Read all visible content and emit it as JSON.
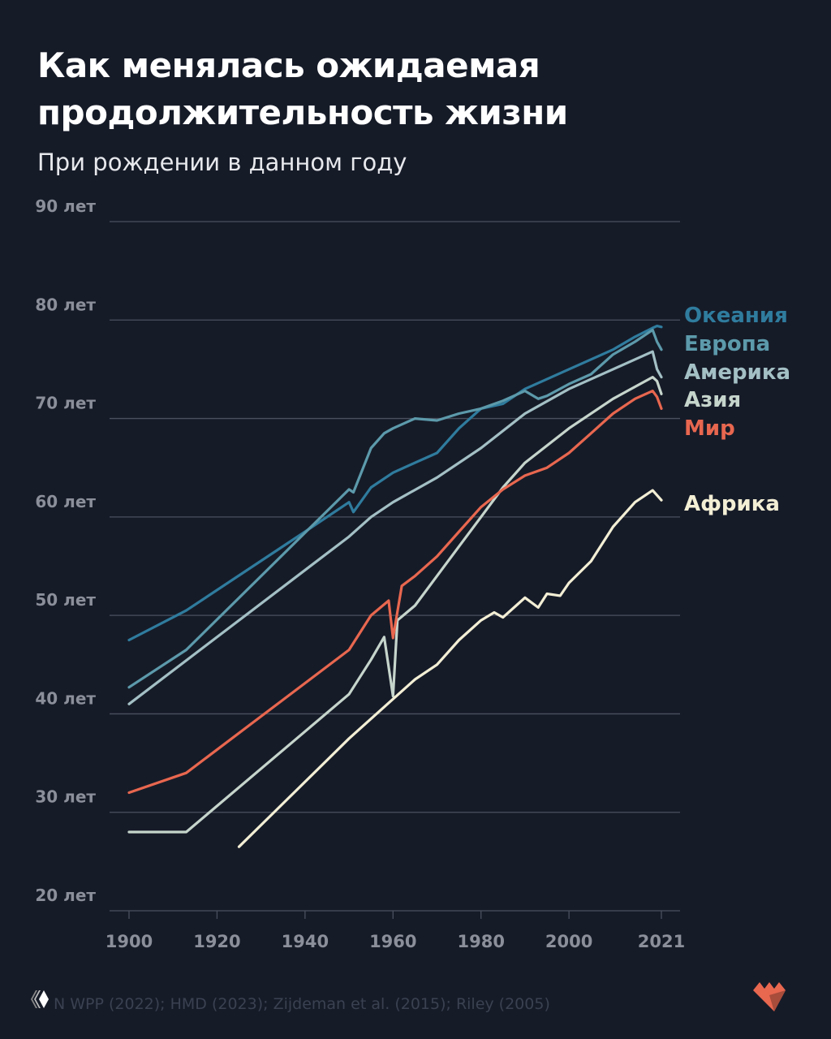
{
  "header": {
    "title_line1": "Как менялась ожидаемая",
    "title_line2": "продолжительность жизни",
    "subtitle": "При рождении в данном году"
  },
  "footer": {
    "source": "N WPP (2022); HMD (2023); Zijdeman et al. (2015); Riley (2005)"
  },
  "colors": {
    "background": "#161b28",
    "grid": "#4a505e",
    "tick_label": "#8a8f9a"
  },
  "chart_data": {
    "type": "line",
    "ylim": [
      20,
      90
    ],
    "xlim": [
      1900,
      2021
    ],
    "grid": true,
    "legend": "right (inline labels at line ends)",
    "y_ticks": [
      {
        "value": 90,
        "label": "90 лет"
      },
      {
        "value": 80,
        "label": "80 лет"
      },
      {
        "value": 70,
        "label": "70 лет"
      },
      {
        "value": 60,
        "label": "60 лет"
      },
      {
        "value": 50,
        "label": "50 лет"
      },
      {
        "value": 40,
        "label": "40 лет"
      },
      {
        "value": 30,
        "label": "30 лет"
      },
      {
        "value": 20,
        "label": "20 лет"
      }
    ],
    "x_ticks": [
      {
        "value": 1900,
        "label": "1900"
      },
      {
        "value": 1920,
        "label": "1920"
      },
      {
        "value": 1940,
        "label": "1940"
      },
      {
        "value": 1960,
        "label": "1960"
      },
      {
        "value": 1980,
        "label": "1980"
      },
      {
        "value": 2000,
        "label": "2000"
      },
      {
        "value": 2021,
        "label": "2021"
      }
    ],
    "series": [
      {
        "name": "Океания",
        "color": "#2f7c9e",
        "x": [
          1900,
          1913,
          1940,
          1950,
          1951,
          1955,
          1960,
          1965,
          1970,
          1975,
          1980,
          1985,
          1990,
          1995,
          2000,
          2005,
          2010,
          2015,
          2019,
          2020,
          2021
        ],
        "y": [
          47.5,
          50.5,
          58.5,
          61.5,
          60.5,
          63,
          64.5,
          65.5,
          66.5,
          69,
          71,
          71.5,
          73,
          74,
          75,
          76,
          77,
          78.3,
          79.2,
          79.4,
          79.3
        ]
      },
      {
        "name": "Европа",
        "color": "#5c9aab",
        "x": [
          1900,
          1913,
          1950,
          1951,
          1955,
          1958,
          1960,
          1965,
          1970,
          1975,
          1980,
          1985,
          1990,
          1993,
          1995,
          2000,
          2005,
          2010,
          2015,
          2019,
          2020,
          2021
        ],
        "y": [
          42.7,
          46.5,
          62.8,
          62.5,
          67,
          68.5,
          69,
          70,
          69.8,
          70.5,
          71,
          71.8,
          72.8,
          72,
          72.3,
          73.5,
          74.5,
          76.5,
          77.8,
          79,
          77.8,
          77
        ]
      },
      {
        "name": "Америка",
        "color": "#a3c0c5",
        "x": [
          1900,
          1950,
          1955,
          1960,
          1970,
          1980,
          1990,
          2000,
          2010,
          2015,
          2019,
          2020,
          2021
        ],
        "y": [
          41,
          58,
          60,
          61.5,
          64,
          67,
          70.5,
          73,
          75,
          76,
          76.8,
          75,
          74.2
        ]
      },
      {
        "name": "Азия",
        "color": "#c6d5cc",
        "x": [
          1900,
          1913,
          1950,
          1955,
          1958,
          1960,
          1961,
          1965,
          1970,
          1975,
          1980,
          1985,
          1990,
          2000,
          2010,
          2019,
          2020,
          2021
        ],
        "y": [
          28,
          28,
          42,
          45.5,
          47.8,
          41.8,
          49.5,
          51,
          54,
          57,
          60,
          63,
          65.5,
          69,
          72,
          74.2,
          73.8,
          72.5
        ]
      },
      {
        "name": "Мир",
        "color": "#e8674f",
        "x": [
          1900,
          1913,
          1950,
          1955,
          1959,
          1960,
          1962,
          1965,
          1970,
          1975,
          1980,
          1985,
          1990,
          1995,
          2000,
          2005,
          2010,
          2015,
          2019,
          2020,
          2021
        ],
        "y": [
          32,
          34,
          46.5,
          50,
          51.5,
          47.7,
          53,
          54,
          56,
          58.5,
          61,
          62.8,
          64.2,
          65,
          66.5,
          68.5,
          70.5,
          72,
          72.8,
          72.2,
          71
        ]
      },
      {
        "name": "Африка",
        "color": "#f3efd5",
        "x": [
          1925,
          1950,
          1957,
          1960,
          1965,
          1970,
          1975,
          1980,
          1983,
          1985,
          1988,
          1990,
          1993,
          1995,
          1998,
          2000,
          2005,
          2010,
          2015,
          2019,
          2021
        ],
        "y": [
          26.5,
          37.5,
          40.3,
          41.5,
          43.5,
          45,
          47.5,
          49.5,
          50.3,
          49.8,
          51,
          51.8,
          50.8,
          52.2,
          52,
          53.3,
          55.5,
          59,
          61.5,
          62.7,
          61.7
        ]
      }
    ]
  }
}
